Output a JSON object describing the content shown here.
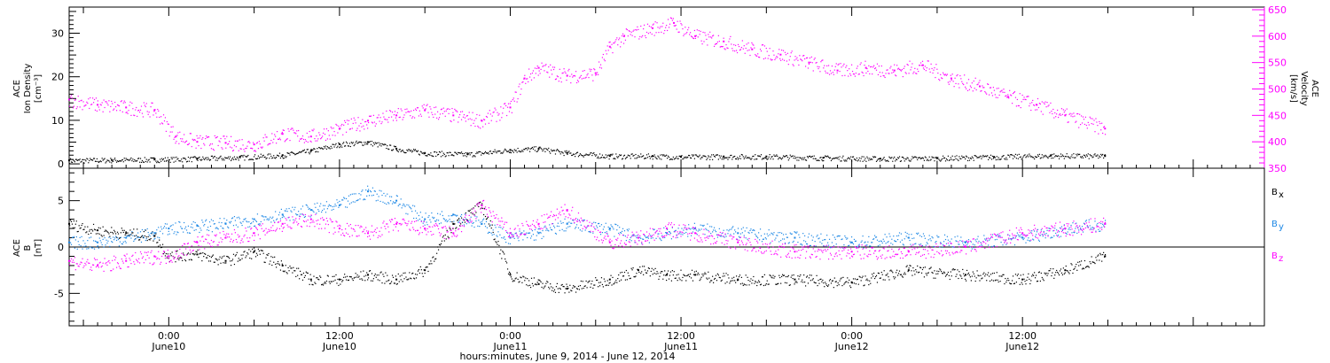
{
  "chart_data": [
    {
      "type": "scatter",
      "panel": "top",
      "title": "",
      "xlabel": "hours:minutes, June  9, 2014 - June 12, 2014",
      "x_ticks": [
        {
          "time": "0:00",
          "date": "June10",
          "hours": 24
        },
        {
          "time": "12:00",
          "date": "June10",
          "hours": 36
        },
        {
          "time": "0:00",
          "date": "June11",
          "hours": 48
        },
        {
          "time": "12:00",
          "date": "June11",
          "hours": 60
        },
        {
          "time": "0:00",
          "date": "June12",
          "hours": 72
        },
        {
          "time": "12:00",
          "date": "June12",
          "hours": 84
        }
      ],
      "xlim_hours": [
        17,
        101
      ],
      "left_axis": {
        "label_lines": [
          "ACE",
          "Ion Density",
          "[cm⁻³]"
        ],
        "ylim": [
          -1,
          36
        ],
        "ticks": [
          "0",
          "10",
          "20",
          "30"
        ],
        "tick_values": [
          0,
          10,
          20,
          30
        ]
      },
      "right_axis": {
        "label_lines": [
          "ACE",
          "Velocity",
          "[km/s]"
        ],
        "ylim": [
          350,
          655
        ],
        "ticks": [
          "350",
          "400",
          "450",
          "500",
          "550",
          "600",
          "650"
        ],
        "tick_values": [
          350,
          400,
          450,
          500,
          550,
          600,
          650
        ],
        "color": "#ff00ff"
      },
      "series": [
        {
          "color": "#000000",
          "axis": "left",
          "x_hours": [
            17,
            20,
            23,
            26,
            29,
            32,
            34,
            36,
            38,
            40,
            42,
            45,
            48,
            50,
            52,
            55,
            58,
            60,
            63,
            66,
            70,
            74,
            78,
            82,
            86,
            89.8
          ],
          "y": [
            0.8,
            0.9,
            1.0,
            1.2,
            1.5,
            2.0,
            3.0,
            4.5,
            5.0,
            3.5,
            2.5,
            2.2,
            3.2,
            3.5,
            2.5,
            1.8,
            1.8,
            1.6,
            1.7,
            1.7,
            1.4,
            1.2,
            1.3,
            1.6,
            1.9,
            1.8
          ]
        },
        {
          "color": "#ff00ff",
          "axis": "right",
          "x_hours": [
            17,
            19,
            21,
            23,
            24.5,
            26,
            28,
            30,
            32,
            34,
            36,
            38,
            40,
            42,
            44,
            46,
            48,
            49,
            50,
            52,
            54,
            55,
            56,
            58,
            59.5,
            61,
            63,
            65,
            67,
            69,
            71,
            73,
            75,
            77,
            79,
            81,
            83,
            85,
            87,
            89.8
          ],
          "y": [
            480,
            470,
            465,
            460,
            410,
            400,
            398,
            395,
            415,
            410,
            425,
            440,
            450,
            460,
            450,
            440,
            465,
            520,
            540,
            525,
            530,
            580,
            600,
            615,
            625,
            600,
            590,
            575,
            565,
            550,
            535,
            540,
            535,
            545,
            520,
            505,
            485,
            470,
            450,
            425
          ]
        }
      ]
    },
    {
      "type": "scatter",
      "panel": "bottom",
      "title": "",
      "xlim_hours": [
        17,
        101
      ],
      "left_axis": {
        "label_lines": [
          "ACE",
          "B",
          "[nT]"
        ],
        "ylim": [
          -8.5,
          8.5
        ],
        "ticks": [
          "-5",
          "0",
          "5"
        ],
        "tick_values": [
          -5,
          0,
          5
        ]
      },
      "zero_line": true,
      "legend": [
        {
          "base": "B",
          "sub": "x",
          "color": "#000000"
        },
        {
          "base": "B",
          "sub": "y",
          "color": "#1e88e5"
        },
        {
          "base": "B",
          "sub": "z",
          "color": "#ff00ff"
        }
      ],
      "series": [
        {
          "name": "Bx",
          "color": "#000000",
          "x_hours": [
            17,
            19,
            21,
            23,
            24,
            26,
            28,
            30,
            32,
            34,
            36,
            38,
            40,
            42,
            44,
            46,
            48,
            50,
            52,
            55,
            57,
            59,
            61,
            64,
            68,
            72,
            76,
            80,
            84,
            87,
            89.8
          ],
          "y": [
            2.5,
            1.8,
            1.5,
            1.2,
            -1.0,
            -0.8,
            -1.5,
            -0.5,
            -2.0,
            -3.5,
            -3.5,
            -3.0,
            -3.5,
            -2.5,
            2.5,
            4.5,
            -3.0,
            -4.0,
            -4.5,
            -3.5,
            -2.5,
            -3.0,
            -3.0,
            -3.5,
            -3.5,
            -3.8,
            -2.5,
            -3.0,
            -3.5,
            -2.5,
            -1.0
          ]
        },
        {
          "name": "By",
          "color": "#1e88e5",
          "x_hours": [
            17,
            19,
            21,
            23,
            24,
            26,
            28,
            30,
            32,
            34,
            36,
            38,
            40,
            42,
            44,
            46,
            48,
            50,
            52,
            55,
            57,
            59,
            61,
            64,
            68,
            72,
            76,
            80,
            84,
            87,
            89.8
          ],
          "y": [
            0.5,
            0.5,
            1.0,
            1.5,
            2.0,
            2.3,
            2.5,
            3.0,
            3.5,
            4.0,
            4.5,
            6.0,
            5.0,
            3.0,
            3.5,
            2.5,
            1.0,
            1.5,
            2.5,
            2.0,
            1.0,
            1.5,
            2.0,
            1.5,
            1.0,
            0.5,
            1.0,
            0.5,
            1.0,
            2.0,
            2.5
          ]
        },
        {
          "name": "Bz",
          "color": "#ff00ff",
          "x_hours": [
            17,
            19,
            21,
            23,
            24,
            26,
            28,
            30,
            32,
            34,
            36,
            38,
            40,
            42,
            44,
            46,
            48,
            50,
            52,
            55,
            57,
            59,
            61,
            64,
            68,
            72,
            76,
            80,
            84,
            87,
            89.8
          ],
          "y": [
            -1.5,
            -2.0,
            -1.5,
            -1.0,
            -1.0,
            0.5,
            1.0,
            1.5,
            2.5,
            3.0,
            2.0,
            1.5,
            2.5,
            2.0,
            1.5,
            4.5,
            1.5,
            2.5,
            4.0,
            0.5,
            1.0,
            2.0,
            1.5,
            0.5,
            -0.5,
            -0.5,
            -0.5,
            0.0,
            1.5,
            2.0,
            2.5
          ]
        }
      ]
    }
  ]
}
